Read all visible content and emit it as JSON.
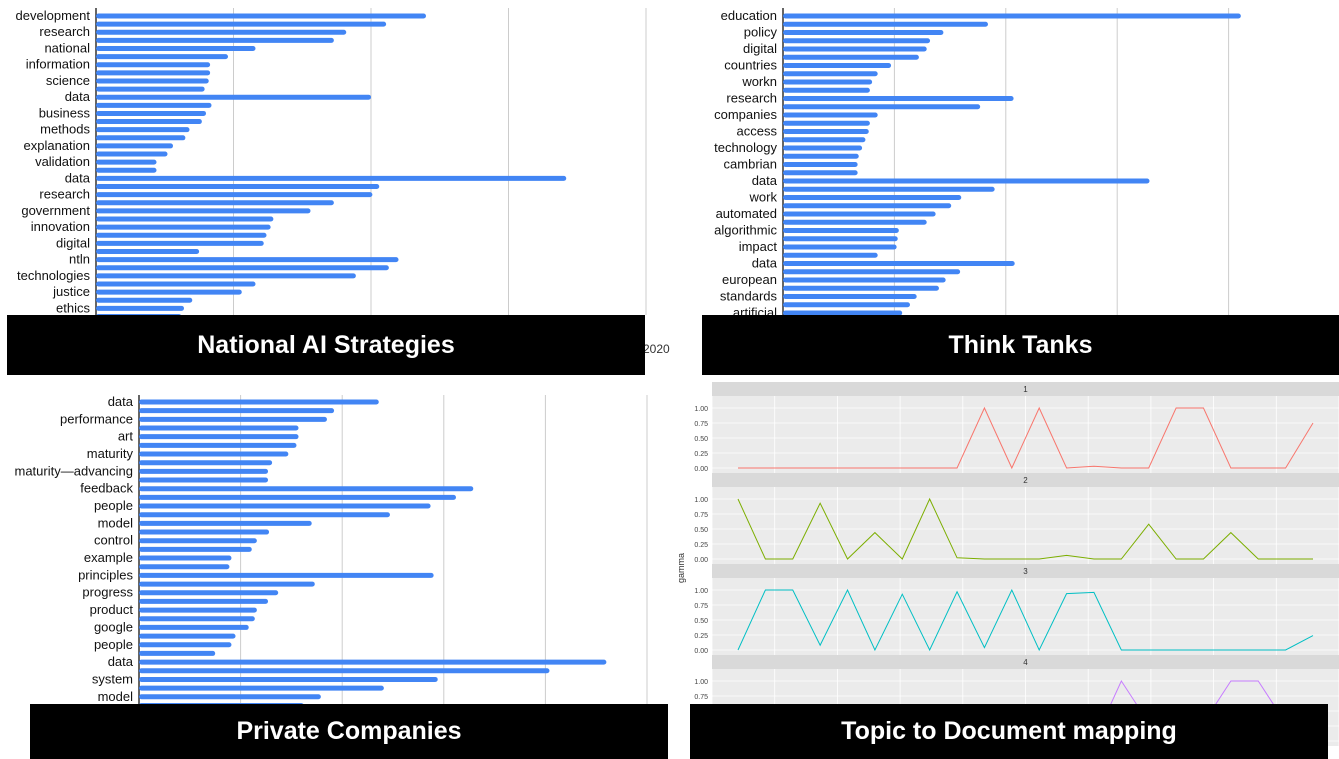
{
  "captions": {
    "nas": "National AI Strategies",
    "tt": "Think Tanks",
    "pc": "Private Companies",
    "tdm": "Topic to Document mapping"
  },
  "stray_tick": "2020",
  "colors": {
    "bar": "#4285f4",
    "grid": "#cccccc",
    "facet_bg": "#ebebeb",
    "strip_bg": "#d9d9d9"
  },
  "chart_data": [
    {
      "id": "nas",
      "type": "bar",
      "orientation": "horizontal",
      "title": "",
      "xlim": [
        0,
        2000
      ],
      "grid_x": [
        500,
        1000,
        1500,
        2000
      ],
      "bars": [
        {
          "label": "development",
          "value": 1200
        },
        {
          "label": "",
          "value": 1055
        },
        {
          "label": "research",
          "value": 910
        },
        {
          "label": "",
          "value": 865
        },
        {
          "label": "national",
          "value": 580
        },
        {
          "label": "",
          "value": 480
        },
        {
          "label": "information",
          "value": 415
        },
        {
          "label": "",
          "value": 415
        },
        {
          "label": "science",
          "value": 410
        },
        {
          "label": "",
          "value": 395
        },
        {
          "label": "data",
          "value": 1000
        },
        {
          "label": "",
          "value": 420
        },
        {
          "label": "business",
          "value": 400
        },
        {
          "label": "",
          "value": 385
        },
        {
          "label": "methods",
          "value": 340
        },
        {
          "label": "",
          "value": 325
        },
        {
          "label": "explanation",
          "value": 280
        },
        {
          "label": "",
          "value": 260
        },
        {
          "label": "validation",
          "value": 220
        },
        {
          "label": "",
          "value": 220
        },
        {
          "label": "data",
          "value": 1710
        },
        {
          "label": "",
          "value": 1030
        },
        {
          "label": "research",
          "value": 1005
        },
        {
          "label": "",
          "value": 865
        },
        {
          "label": "government",
          "value": 780
        },
        {
          "label": "",
          "value": 645
        },
        {
          "label": "innovation",
          "value": 635
        },
        {
          "label": "",
          "value": 620
        },
        {
          "label": "digital",
          "value": 610
        },
        {
          "label": "",
          "value": 375
        },
        {
          "label": "ntln",
          "value": 1100
        },
        {
          "label": "",
          "value": 1065
        },
        {
          "label": "technologies",
          "value": 945
        },
        {
          "label": "",
          "value": 580
        },
        {
          "label": "justice",
          "value": 530
        },
        {
          "label": "",
          "value": 350
        },
        {
          "label": "ethics",
          "value": 320
        },
        {
          "label": "",
          "value": 310
        }
      ]
    },
    {
      "id": "tt",
      "type": "bar",
      "orientation": "horizontal",
      "title": "",
      "xlim": [
        0,
        500
      ],
      "grid_x": [
        100,
        200,
        300,
        400,
        500
      ],
      "bars": [
        {
          "label": "education",
          "value": 411
        },
        {
          "label": "",
          "value": 184
        },
        {
          "label": "policy",
          "value": 144
        },
        {
          "label": "",
          "value": 132
        },
        {
          "label": "digital",
          "value": 129
        },
        {
          "label": "",
          "value": 122
        },
        {
          "label": "countries",
          "value": 97
        },
        {
          "label": "",
          "value": 85
        },
        {
          "label": "workn",
          "value": 80
        },
        {
          "label": "",
          "value": 78
        },
        {
          "label": "research",
          "value": 207
        },
        {
          "label": "",
          "value": 177
        },
        {
          "label": "companies",
          "value": 85
        },
        {
          "label": "",
          "value": 78
        },
        {
          "label": "access",
          "value": 77
        },
        {
          "label": "",
          "value": 74
        },
        {
          "label": "technology",
          "value": 71
        },
        {
          "label": "",
          "value": 68
        },
        {
          "label": "cambrian",
          "value": 67
        },
        {
          "label": "",
          "value": 67
        },
        {
          "label": "data",
          "value": 329
        },
        {
          "label": "",
          "value": 190
        },
        {
          "label": "work",
          "value": 160
        },
        {
          "label": "",
          "value": 151
        },
        {
          "label": "automated",
          "value": 137
        },
        {
          "label": "",
          "value": 129
        },
        {
          "label": "algorithmic",
          "value": 104
        },
        {
          "label": "",
          "value": 103
        },
        {
          "label": "impact",
          "value": 102
        },
        {
          "label": "",
          "value": 85
        },
        {
          "label": "data",
          "value": 208
        },
        {
          "label": "",
          "value": 159
        },
        {
          "label": "european",
          "value": 146
        },
        {
          "label": "",
          "value": 140
        },
        {
          "label": "standards",
          "value": 120
        },
        {
          "label": "",
          "value": 114
        },
        {
          "label": "artificial",
          "value": 107
        }
      ]
    },
    {
      "id": "pc",
      "type": "bar",
      "orientation": "horizontal",
      "title": "",
      "xlim": [
        0,
        500
      ],
      "grid_x": [
        100,
        200,
        300,
        400,
        500
      ],
      "bars": [
        {
          "label": "data",
          "value": 236
        },
        {
          "label": "",
          "value": 192
        },
        {
          "label": "performance",
          "value": 185
        },
        {
          "label": "",
          "value": 157
        },
        {
          "label": "art",
          "value": 157
        },
        {
          "label": "",
          "value": 155
        },
        {
          "label": "maturity",
          "value": 147
        },
        {
          "label": "",
          "value": 131
        },
        {
          "label": "maturity—advancing",
          "value": 127
        },
        {
          "label": "",
          "value": 127
        },
        {
          "label": "feedback",
          "value": 329
        },
        {
          "label": "",
          "value": 312
        },
        {
          "label": "people",
          "value": 287
        },
        {
          "label": "",
          "value": 247
        },
        {
          "label": "model",
          "value": 170
        },
        {
          "label": "",
          "value": 128
        },
        {
          "label": "control",
          "value": 116
        },
        {
          "label": "",
          "value": 111
        },
        {
          "label": "example",
          "value": 91
        },
        {
          "label": "",
          "value": 89
        },
        {
          "label": "principles",
          "value": 290
        },
        {
          "label": "",
          "value": 173
        },
        {
          "label": "progress",
          "value": 137
        },
        {
          "label": "",
          "value": 127
        },
        {
          "label": "product",
          "value": 116
        },
        {
          "label": "",
          "value": 114
        },
        {
          "label": "google",
          "value": 108
        },
        {
          "label": "",
          "value": 95
        },
        {
          "label": "people",
          "value": 91
        },
        {
          "label": "",
          "value": 75
        },
        {
          "label": "data",
          "value": 460
        },
        {
          "label": "",
          "value": 404
        },
        {
          "label": "system",
          "value": 294
        },
        {
          "label": "",
          "value": 241
        },
        {
          "label": "model",
          "value": 179
        },
        {
          "label": "",
          "value": 162
        }
      ]
    },
    {
      "id": "tdm",
      "type": "line",
      "title": "",
      "ylabel": "gamma",
      "ylim": [
        0,
        1
      ],
      "y_ticks": [
        "0.00",
        "0.25",
        "0.50",
        "0.75",
        "1.00"
      ],
      "x": [
        1,
        2,
        3,
        4,
        5,
        6,
        7,
        8,
        9,
        10,
        11,
        12,
        13,
        14,
        15,
        16,
        17,
        18,
        19,
        20,
        21,
        22
      ],
      "facets": [
        {
          "label": "1",
          "color": "#f8766d",
          "values": [
            0,
            0,
            0,
            0,
            0,
            0,
            0,
            0,
            0,
            1,
            0,
            1,
            0,
            0.03,
            0,
            0,
            1,
            1,
            0,
            0,
            0,
            0.75
          ]
        },
        {
          "label": "2",
          "color": "#7cae00",
          "values": [
            1,
            0,
            0,
            0.93,
            0,
            0.44,
            0,
            1,
            0.02,
            0,
            0,
            0,
            0.06,
            0,
            0,
            0.58,
            0,
            0,
            0.44,
            0,
            0,
            0
          ]
        },
        {
          "label": "3",
          "color": "#00bfc4",
          "values": [
            0,
            1,
            1,
            0.08,
            1,
            0,
            0.93,
            0,
            0.97,
            0.04,
            1,
            0,
            0.94,
            0.96,
            0,
            0,
            0,
            0,
            0,
            0,
            0,
            0.24
          ]
        },
        {
          "label": "4",
          "color": "#c77cff",
          "values": [
            0,
            0,
            0,
            0,
            0,
            0.55,
            0,
            0,
            0,
            0,
            0,
            0,
            0,
            0,
            1,
            0.3,
            0,
            0.3,
            1,
            1,
            0.3,
            0
          ]
        }
      ]
    }
  ]
}
